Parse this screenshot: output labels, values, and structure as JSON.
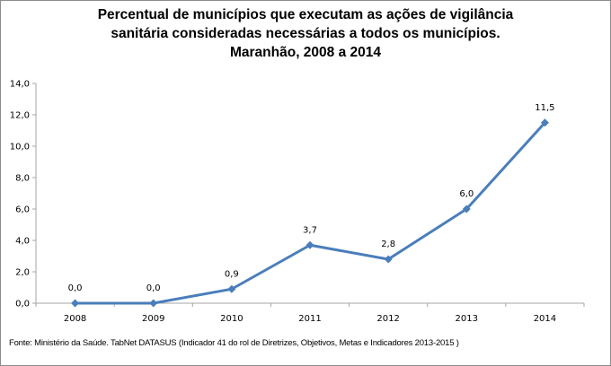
{
  "chart_data": {
    "type": "line",
    "title_lines": [
      "Percentual de municípios que executam as ações de vigilância",
      "sanitária consideradas necessárias a todos os municípios.",
      "Maranhão, 2008 a 2014"
    ],
    "categories": [
      "2008",
      "2009",
      "2010",
      "2011",
      "2012",
      "2013",
      "2014"
    ],
    "series": [
      {
        "name": "Percentual",
        "values": [
          0.0,
          0.0,
          0.9,
          3.7,
          2.8,
          6.0,
          11.5
        ],
        "data_labels": [
          "0,0",
          "0,0",
          "0,9",
          "3,7",
          "2,8",
          "6,0",
          "11,5"
        ],
        "color": "#4a7ebb",
        "marker": "diamond"
      }
    ],
    "ylim": [
      0,
      14
    ],
    "yticks": [
      0,
      2,
      4,
      6,
      8,
      10,
      12,
      14
    ],
    "ytick_labels": [
      "0,0",
      "2,0",
      "4,0",
      "6,0",
      "8,0",
      "10,0",
      "12,0",
      "14,0"
    ],
    "xlabel": "",
    "ylabel": "",
    "grid": false,
    "legend": "none",
    "axis_color": "#a6a6a6"
  },
  "source": "Fonte: Ministério da Saúde. TabNet DATASUS (Indicador 41 do rol de Diretrizes, Objetivos, Metas e Indicadores 2013-2015 )"
}
